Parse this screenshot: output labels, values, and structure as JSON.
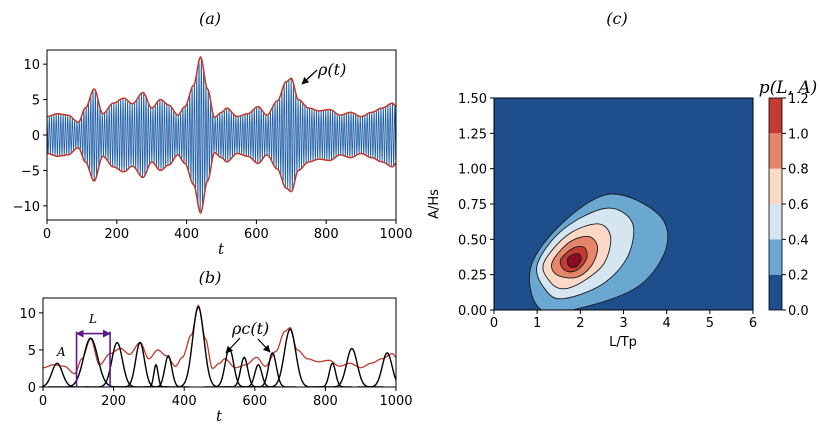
{
  "chart_data": [
    {
      "panel": "a",
      "panel_label": "(a)",
      "type": "line",
      "xlabel": "t",
      "ylabel": "",
      "xlim": [
        0,
        1000
      ],
      "ylim": [
        -12,
        12
      ],
      "xticks": [
        "0",
        "200",
        "400",
        "600",
        "800",
        "1000"
      ],
      "xtick_values": [
        0,
        200,
        400,
        600,
        800,
        1000
      ],
      "yticks": [
        "10",
        "5",
        "0",
        "−5",
        "−10"
      ],
      "ytick_values": [
        10,
        5,
        0,
        -5,
        -10
      ],
      "annotation": "ρ(t)",
      "series": [
        {
          "name": "wave",
          "color": "#1f5fa6",
          "style": "oscillation bounded by envelope, about 150 cycles"
        },
        {
          "name": "envelope ρ(t)",
          "color": "#c0392b",
          "x": [
            0,
            30,
            60,
            90,
            110,
            135,
            160,
            190,
            220,
            245,
            275,
            300,
            325,
            350,
            375,
            395,
            420,
            440,
            460,
            480,
            500,
            515,
            545,
            575,
            605,
            630,
            660,
            685,
            700,
            720,
            750,
            780,
            810,
            840,
            870,
            900,
            930,
            960,
            990,
            1000
          ],
          "values": [
            2.6,
            3.0,
            2.8,
            1.8,
            3.8,
            6.5,
            3.0,
            4.5,
            5.2,
            4.4,
            6.0,
            3.8,
            5.0,
            4.2,
            2.8,
            4.0,
            7.0,
            11.0,
            6.5,
            2.5,
            3.2,
            3.8,
            2.6,
            3.0,
            4.0,
            2.8,
            4.8,
            7.5,
            8.0,
            5.0,
            3.8,
            3.4,
            3.6,
            2.8,
            3.2,
            2.6,
            3.2,
            3.8,
            4.5,
            4.0
          ]
        }
      ]
    },
    {
      "panel": "b",
      "panel_label": "(b)",
      "type": "line",
      "xlabel": "t",
      "ylabel": "",
      "xlim": [
        0,
        1000
      ],
      "ylim": [
        0,
        12
      ],
      "xticks": [
        "0",
        "200",
        "400",
        "600",
        "800",
        "1000"
      ],
      "xtick_values": [
        0,
        200,
        400,
        600,
        800,
        1000
      ],
      "yticks": [
        "10",
        "5",
        "0"
      ],
      "ytick_values": [
        10,
        5,
        0
      ],
      "annotations": {
        "curve": "ρc(t)",
        "length": "L",
        "amplitude": "A"
      },
      "bracket": {
        "t_start": 95,
        "t_end": 190,
        "height": 7.2
      },
      "series": [
        {
          "name": "envelope",
          "color": "#c0392b",
          "same_as_panel": "a"
        },
        {
          "name": "ρc(t) bumps",
          "color": "#000000",
          "bumps": [
            {
              "center": 40,
              "amp": 3.2,
              "width": 30
            },
            {
              "center": 135,
              "amp": 6.6,
              "width": 40
            },
            {
              "center": 210,
              "amp": 6.0,
              "width": 30
            },
            {
              "center": 275,
              "amp": 6.0,
              "width": 25
            },
            {
              "center": 320,
              "amp": 3.0,
              "width": 12
            },
            {
              "center": 355,
              "amp": 4.2,
              "width": 20
            },
            {
              "center": 440,
              "amp": 10.8,
              "width": 32
            },
            {
              "center": 528,
              "amp": 5.2,
              "width": 24
            },
            {
              "center": 570,
              "amp": 4.0,
              "width": 20
            },
            {
              "center": 610,
              "amp": 3.0,
              "width": 20
            },
            {
              "center": 650,
              "amp": 4.6,
              "width": 22
            },
            {
              "center": 700,
              "amp": 7.8,
              "width": 32
            },
            {
              "center": 820,
              "amp": 3.2,
              "width": 18
            },
            {
              "center": 875,
              "amp": 5.2,
              "width": 30
            },
            {
              "center": 975,
              "amp": 4.6,
              "width": 28
            }
          ]
        }
      ]
    },
    {
      "panel": "c",
      "panel_label": "(c)",
      "type": "heatmap",
      "subtype": "filled contour",
      "title": "p(L, A)",
      "xlabel": "L/Tp",
      "ylabel": "A/Hs",
      "xlim": [
        0,
        6
      ],
      "ylim": [
        0,
        1.5
      ],
      "xticks": [
        "0",
        "1",
        "2",
        "3",
        "4",
        "5",
        "6"
      ],
      "xtick_values": [
        0,
        1,
        2,
        3,
        4,
        5,
        6
      ],
      "yticks": [
        "1.50",
        "1.25",
        "1.00",
        "0.75",
        "0.50",
        "0.25",
        "0.00"
      ],
      "ytick_values": [
        1.5,
        1.25,
        1.0,
        0.75,
        0.5,
        0.25,
        0.0
      ],
      "colorbar": {
        "ticks": [
          "1.2",
          "1.0",
          "0.8",
          "0.6",
          "0.4",
          "0.2",
          "0.0"
        ],
        "tick_values": [
          1.2,
          1.0,
          0.8,
          0.6,
          0.4,
          0.2,
          0.0
        ],
        "levels": [
          0.0,
          0.2,
          0.4,
          0.6,
          0.8,
          1.0,
          1.2
        ],
        "colors": [
          "#1f4e8c",
          "#6aa8d2",
          "#d6e6f0",
          "#fbd9c6",
          "#e5856a",
          "#c23c32",
          "#8b0a25"
        ]
      },
      "peak": {
        "L": 1.9,
        "A": 0.35,
        "p": 1.15
      }
    }
  ]
}
